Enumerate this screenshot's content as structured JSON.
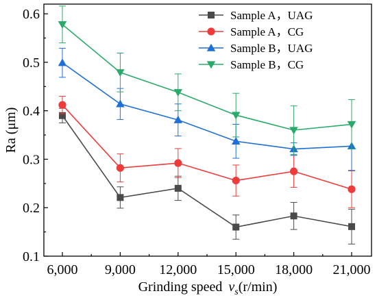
{
  "chart_data": {
    "type": "line",
    "xlabel": "Grinding speed",
    "xlabel_symbol": "v",
    "xlabel_subscript": "s",
    "xlabel_unit": "(r/min)",
    "ylabel": "Ra (μm)",
    "categories": [
      "6,000",
      "9,000",
      "12,000",
      "15,000",
      "18,000",
      "21,000"
    ],
    "ylim": [
      0.1,
      0.62
    ],
    "yticks": [
      0.1,
      0.2,
      0.3,
      0.4,
      0.5,
      0.6
    ],
    "ytick_labels": [
      "0.1",
      "0.2",
      "0.3",
      "0.4",
      "0.5",
      "0.6"
    ],
    "grid": false,
    "legend_position": "top-right",
    "series": [
      {
        "name": "Sample A，UAG",
        "color": "#4a4a4a",
        "marker": "square",
        "values": [
          0.39,
          0.221,
          0.24,
          0.16,
          0.183,
          0.161
        ],
        "errors": [
          0.015,
          0.022,
          0.025,
          0.025,
          0.028,
          0.036
        ]
      },
      {
        "name": "Sample A，CG",
        "color": "#ee3b3b",
        "marker": "circle",
        "values": [
          0.412,
          0.282,
          0.292,
          0.256,
          0.275,
          0.238
        ],
        "errors": [
          0.018,
          0.029,
          0.03,
          0.032,
          0.033,
          0.038
        ]
      },
      {
        "name": "Sample B，UAG",
        "color": "#1f6fd6",
        "marker": "triangle-up",
        "values": [
          0.499,
          0.414,
          0.381,
          0.337,
          0.321,
          0.327
        ],
        "errors": [
          0.03,
          0.032,
          0.033,
          0.035,
          0.013,
          0.05
        ]
      },
      {
        "name": "Sample B，CG",
        "color": "#2aaa6a",
        "marker": "triangle-down",
        "values": [
          0.578,
          0.479,
          0.438,
          0.391,
          0.36,
          0.372
        ],
        "errors": [
          0.038,
          0.04,
          0.038,
          0.045,
          0.05,
          0.051
        ]
      }
    ]
  }
}
